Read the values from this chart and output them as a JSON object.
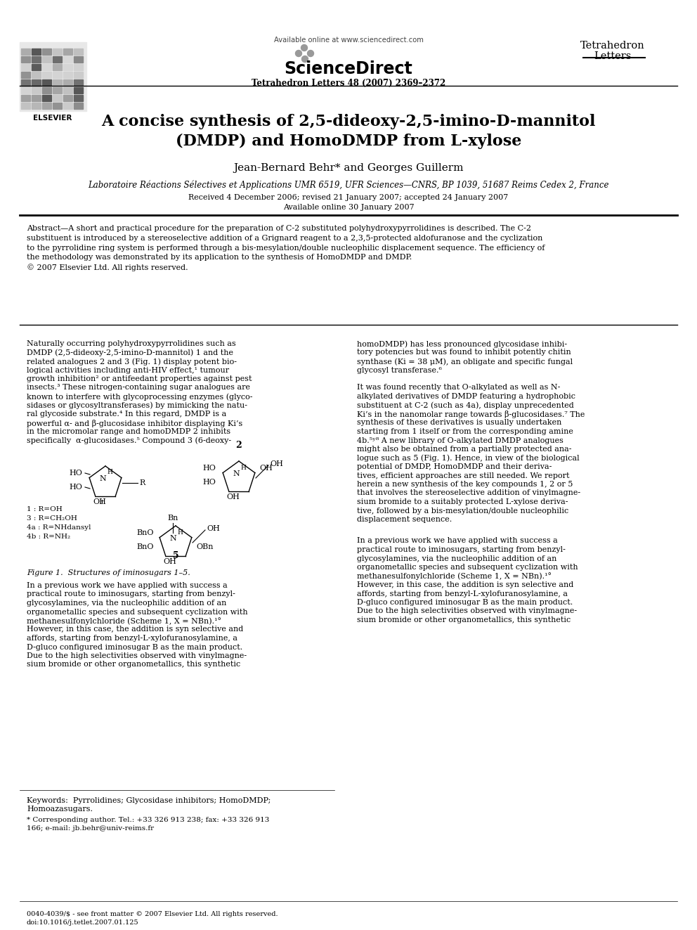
{
  "bg_color": "#ffffff",
  "header_available": "Available online at www.sciencedirect.com",
  "header_journal1": "Tetrahedron",
  "header_journal2": "Letters",
  "header_citation": "Tetrahedron Letters 48 (2007) 2369–2372",
  "header_elsevier": "ELSEVIER",
  "title_line1": "A concise synthesis of 2,5-dideoxy-2,5-imino-D-mannitol",
  "title_line2": "(DMDP) and HomoDMDP from L-xylose",
  "authors": "Jean-Bernard Behr* and Georges Guillerm",
  "affiliation": "Laboratoire Réactions Sélectives et Applications UMR 6519, UFR Sciences—CNRS, BP 1039, 51687 Reims Cedex 2, France",
  "received": "Received 4 December 2006; revised 21 January 2007; accepted 24 January 2007",
  "available": "Available online 30 January 2007",
  "abstract_lines": [
    "Abstract—A short and practical procedure for the preparation of C-2 substituted polyhydroxypyrrolidines is described. The C-2",
    "substituent is introduced by a stereoselective addition of a Grignard reagent to a 2,3,5-protected aldofuranose and the cyclization",
    "to the pyrrolidine ring system is performed through a bis-mesylation/double nucleophilic displacement sequence. The efficiency of",
    "the methodology was demonstrated by its application to the synthesis of HomoDMDP and DMDP.",
    "© 2007 Elsevier Ltd. All rights reserved."
  ],
  "left_col_lines": [
    "Naturally occurring polyhydroxypyrrolidines such as",
    "DMDP (2,5-dideoxy-2,5-imino-D-mannitol) 1 and the",
    "related analogues 2 and 3 (Fig. 1) display potent bio-",
    "logical activities including anti-HIV effect,¹ tumour",
    "growth inhibition² or antifeedant properties against pest",
    "insects.³ These nitrogen-containing sugar analogues are",
    "known to interfere with glycoprocessing enzymes (glyco-",
    "sidases or glycosyltransferases) by mimicking the natu-",
    "ral glycoside substrate.⁴ In this regard, DMDP is a",
    "powerful α- and β-glucosidase inhibitor displaying Ki’s",
    "in the micromolar range and homoDMDP 2 inhibits",
    "specifically  α-glucosidases.⁵ Compound 3 (6-deoxy-"
  ],
  "right_col_lines": [
    "homoDMDP) has less pronounced glycosidase inhibi-",
    "tory potencies but was found to inhibit potently chitin",
    "synthase (Ki = 38 μM), an obligate and specific fungal",
    "glycosyl transferase.⁶",
    "",
    "It was found recently that O-alkylated as well as N-",
    "alkylated derivatives of DMDP featuring a hydrophobic",
    "substituent at C-2 (such as 4a), display unprecedented",
    "Ki’s in the nanomolar range towards β-glucosidases.⁷ The",
    "synthesis of these derivatives is usually undertaken",
    "starting from 1 itself or from the corresponding amine",
    "4b.⁵ʸ⁸ A new library of O-alkylated DMDP analogues",
    "might also be obtained from a partially protected ana-",
    "logue such as 5 (Fig. 1). Hence, in view of the biological",
    "potential of DMDP, HomoDMDP and their deriva-",
    "tives, efficient approaches are still needed. We report",
    "herein a new synthesis of the key compounds 1, 2 or 5",
    "that involves the stereoselective addition of vinylmagne-",
    "sium bromide to a suitably protected L-xylose deriva-",
    "tive, followed by a bis-mesylation/double nucleophilic",
    "displacement sequence."
  ],
  "left_col_lines2": [
    "In a previous work we have applied with success a",
    "practical route to iminosugars, starting from benzyl-",
    "glycosylamines, via the nucleophilic addition of an",
    "organometallic species and subsequent cyclization with",
    "methanesulfonylchloride (Scheme 1, X = NBn).¹°",
    "However, in this case, the addition is syn selective and",
    "affords, starting from benzyl-L-xylofuranosylamine, a",
    "D-gluco configured iminosugar B as the main product.",
    "Due to the high selectivities observed with vinylmagne-",
    "sium bromide or other organometallics, this synthetic"
  ],
  "right_col_lines2": [
    "In a previous work we have applied with success a",
    "practical route to iminosugars, starting from benzyl-",
    "glycosylamines, via the nucleophilic addition of an",
    "organometallic species and subsequent cyclization with",
    "methanesulfonylchloride (Scheme 1, X = NBn).¹°",
    "However, in this case, the addition is syn selective and",
    "affords, starting from benzyl-L-xylofuranosylamine, a",
    "D-gluco configured iminosugar B as the main product.",
    "Due to the high selectivities observed with vinylmagne-",
    "sium bromide or other organometallics, this synthetic"
  ],
  "figure_caption": "Figure 1.  Structures of iminosugars 1–5.",
  "keywords_line1": "Keywords:  Pyrrolidines; Glycosidase inhibitors; HomoDMDP;",
  "keywords_line2": "Homoazasugars.",
  "footnote1": "* Corresponding author. Tel.: +33 326 913 238; fax: +33 326 913",
  "footnote2": "166; e-mail: jb.behr@univ-reims.fr",
  "footer_issn": "0040-4039/$ - see front matter © 2007 Elsevier Ltd. All rights reserved.",
  "footer_doi": "doi:10.1016/j.tetlet.2007.01.125"
}
